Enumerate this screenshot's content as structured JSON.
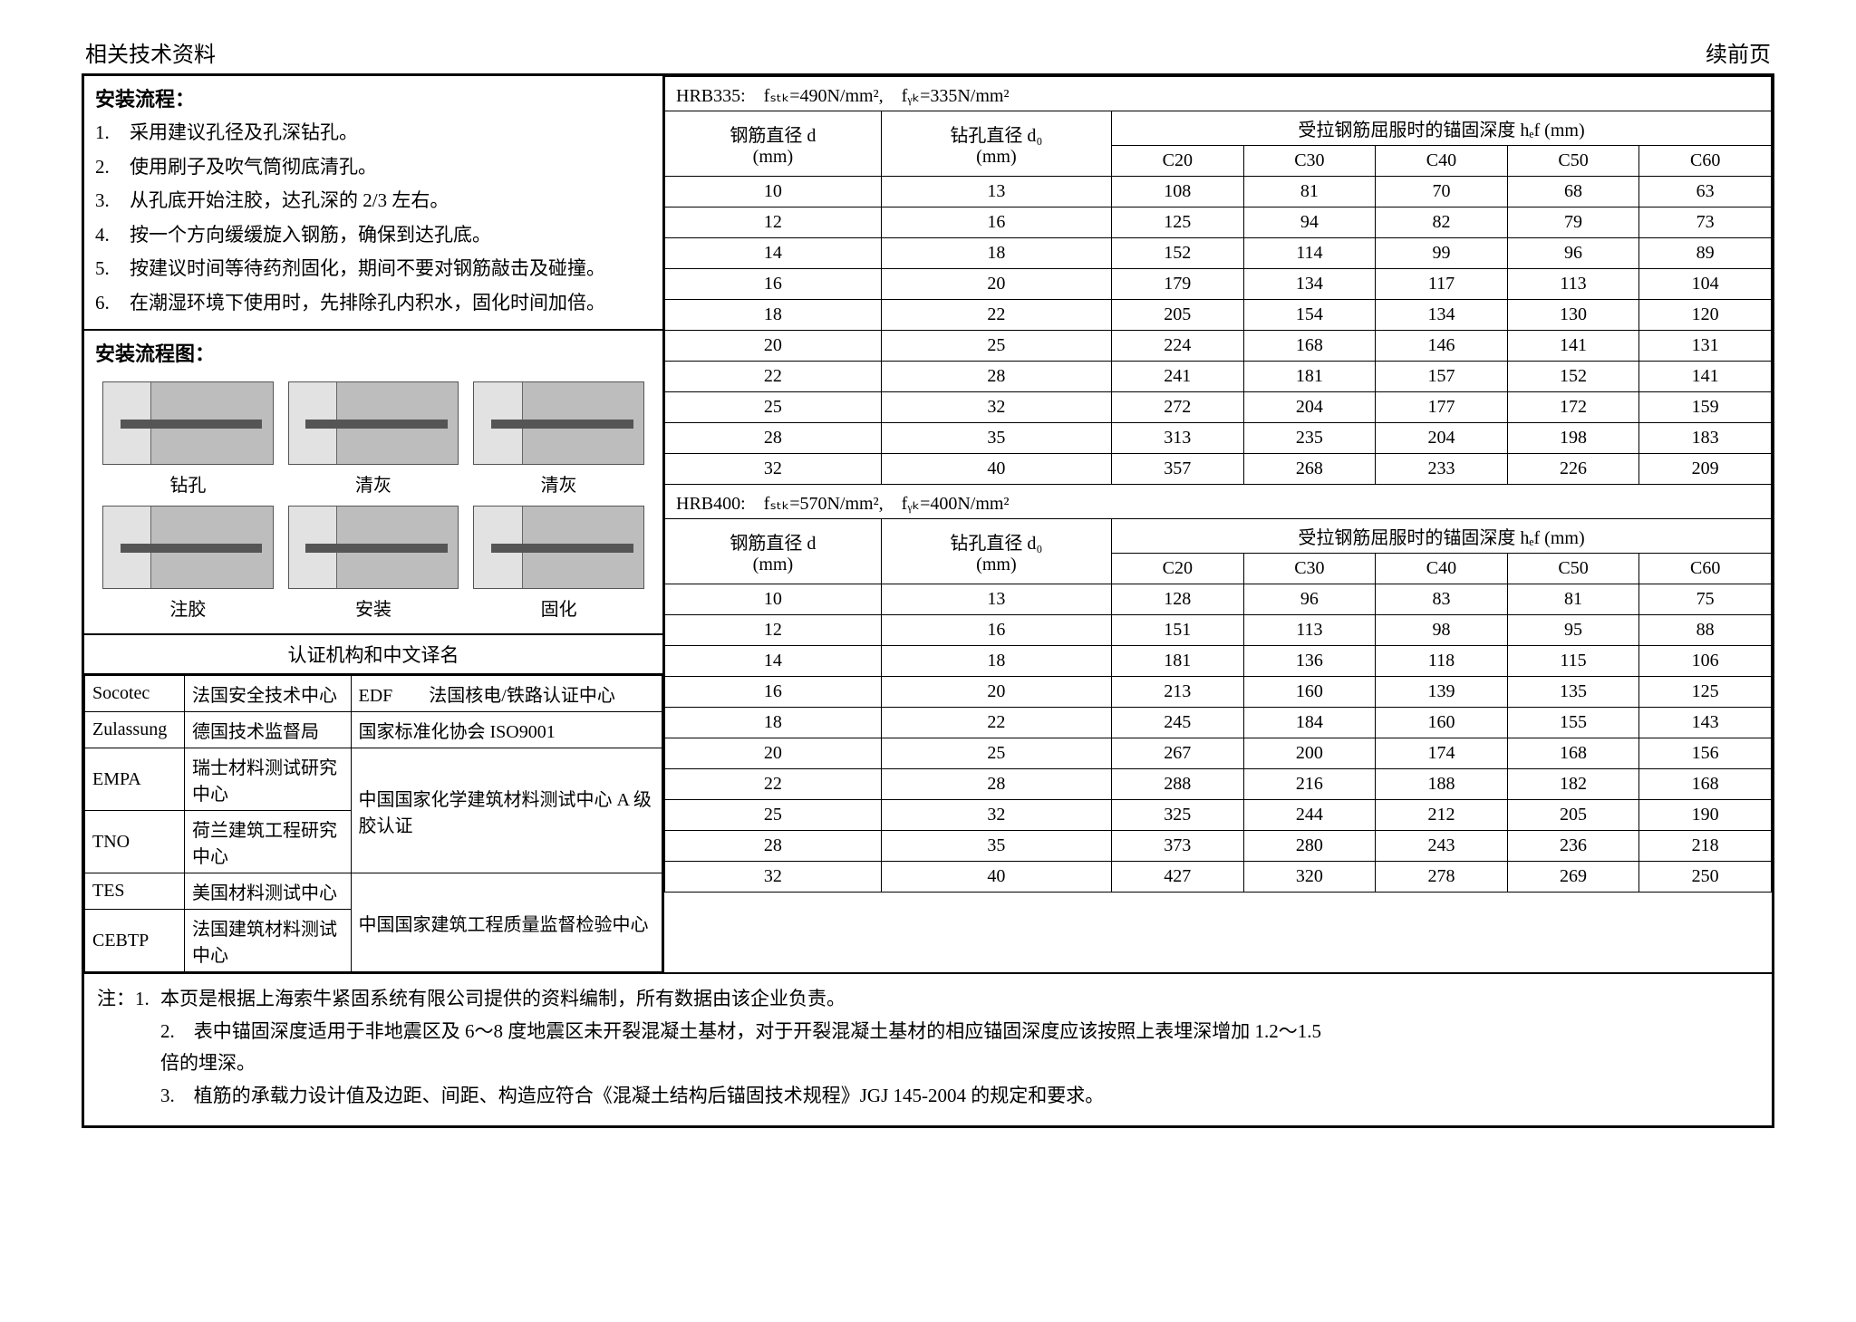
{
  "top": {
    "left": "相关技术资料",
    "right": "续前页"
  },
  "install": {
    "title": "安装流程：",
    "steps": [
      "采用建议孔径及孔深钻孔。",
      "使用刷子及吹气筒彻底清孔。",
      "从孔底开始注胶，达孔深的 2/3 左右。",
      "按一个方向缓缓旋入钢筋，确保到达孔底。",
      "按建议时间等待药剂固化，期间不要对钢筋敲击及碰撞。",
      "在潮湿环境下使用时，先排除孔内积水，固化时间加倍。"
    ]
  },
  "diagram": {
    "title": "安装流程图：",
    "labels": [
      "钻孔",
      "清灰",
      "清灰",
      "注胶",
      "安装",
      "固化"
    ]
  },
  "cert": {
    "title": "认证机构和中文译名",
    "left": [
      [
        "Socotec",
        "法国安全技术中心"
      ],
      [
        "Zulassung",
        "德国技术监督局"
      ],
      [
        "EMPA",
        "瑞士材料测试研究中心"
      ],
      [
        "TNO",
        "荷兰建筑工程研究中心"
      ],
      [
        "TES",
        "美国材料测试中心"
      ],
      [
        "CEBTP",
        "法国建筑材料测试中心"
      ]
    ],
    "right": [
      "EDF　　法国核电/铁路认证中心",
      "国家标准化协会 ISO9001",
      "中国国家化学建筑材料测试中心 A 级胶认证",
      "中国国家建筑工程质量监督检验中心"
    ]
  },
  "thead": {
    "d": "钢筋直径 d",
    "d0": "钻孔直径 d₀",
    "mm": "(mm)",
    "ef": "受拉钢筋屈服时的锚固深度 hₑf (mm)",
    "cols": [
      "C20",
      "C30",
      "C40",
      "C50",
      "C60"
    ]
  },
  "hrb335": {
    "title": "HRB335:　fₛₜₖ=490N/mm²,　fᵧₖ=335N/mm²",
    "rows": [
      [
        "10",
        "13",
        "108",
        "81",
        "70",
        "68",
        "63"
      ],
      [
        "12",
        "16",
        "125",
        "94",
        "82",
        "79",
        "73"
      ],
      [
        "14",
        "18",
        "152",
        "114",
        "99",
        "96",
        "89"
      ],
      [
        "16",
        "20",
        "179",
        "134",
        "117",
        "113",
        "104"
      ],
      [
        "18",
        "22",
        "205",
        "154",
        "134",
        "130",
        "120"
      ],
      [
        "20",
        "25",
        "224",
        "168",
        "146",
        "141",
        "131"
      ],
      [
        "22",
        "28",
        "241",
        "181",
        "157",
        "152",
        "141"
      ],
      [
        "25",
        "32",
        "272",
        "204",
        "177",
        "172",
        "159"
      ],
      [
        "28",
        "35",
        "313",
        "235",
        "204",
        "198",
        "183"
      ],
      [
        "32",
        "40",
        "357",
        "268",
        "233",
        "226",
        "209"
      ]
    ]
  },
  "hrb400": {
    "title": "HRB400:　fₛₜₖ=570N/mm²,　fᵧₖ=400N/mm²",
    "rows": [
      [
        "10",
        "13",
        "128",
        "96",
        "83",
        "81",
        "75"
      ],
      [
        "12",
        "16",
        "151",
        "113",
        "98",
        "95",
        "88"
      ],
      [
        "14",
        "18",
        "181",
        "136",
        "118",
        "115",
        "106"
      ],
      [
        "16",
        "20",
        "213",
        "160",
        "139",
        "135",
        "125"
      ],
      [
        "18",
        "22",
        "245",
        "184",
        "160",
        "155",
        "143"
      ],
      [
        "20",
        "25",
        "267",
        "200",
        "174",
        "168",
        "156"
      ],
      [
        "22",
        "28",
        "288",
        "216",
        "188",
        "182",
        "168"
      ],
      [
        "25",
        "32",
        "325",
        "244",
        "212",
        "205",
        "190"
      ],
      [
        "28",
        "35",
        "373",
        "280",
        "243",
        "236",
        "218"
      ],
      [
        "32",
        "40",
        "427",
        "320",
        "278",
        "269",
        "250"
      ]
    ]
  },
  "notes": {
    "prefix": "注：1.",
    "n1": "本页是根据上海索牛紧固系统有限公司提供的资料编制，所有数据由该企业负责。",
    "n2a": "2.　表中锚固深度适用于非地震区及 6～8 度地震区未开裂混凝土基材，对于开裂混凝土基材的相应锚固深度应该按照上表埋深增加 1.2～1.5",
    "n2b": "倍的埋深。",
    "n3": "3.　植筋的承载力设计值及边距、间距、构造应符合《混凝土结构后锚固技术规程》JGJ 145-2004 的规定和要求。"
  }
}
